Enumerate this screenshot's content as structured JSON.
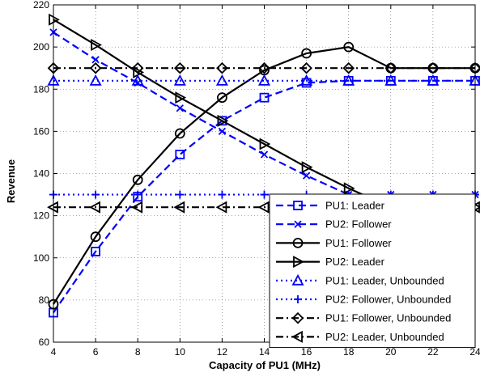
{
  "chart_data": {
    "type": "line",
    "title": "",
    "xlabel": "Capacity of PU1 (MHz)",
    "ylabel": "Revenue",
    "xlim": [
      4,
      24
    ],
    "ylim": [
      60,
      220
    ],
    "x_ticks": [
      4,
      6,
      8,
      10,
      12,
      14,
      16,
      18,
      20,
      22,
      24
    ],
    "y_ticks": [
      60,
      80,
      100,
      120,
      140,
      160,
      180,
      200,
      220
    ],
    "grid": true,
    "legend_position": "bottom-right",
    "x": [
      4,
      6,
      8,
      10,
      12,
      14,
      16,
      18,
      20,
      22,
      24
    ],
    "series": [
      {
        "name": "PU1: Leader",
        "color": "#0000ff",
        "line": "dashed",
        "marker": "square",
        "values": [
          74,
          103,
          129,
          149,
          165,
          176,
          183,
          184,
          184,
          184,
          184
        ]
      },
      {
        "name": "PU2: Follower",
        "color": "#0000ff",
        "line": "dashed",
        "marker": "x",
        "values": [
          207,
          194,
          183,
          171,
          160,
          149,
          139,
          130,
          130,
          130,
          130
        ]
      },
      {
        "name": "PU1: Follower",
        "color": "#000000",
        "line": "solid",
        "marker": "circle",
        "values": [
          78,
          110,
          137,
          159,
          176,
          189,
          197,
          200,
          190,
          190,
          190
        ]
      },
      {
        "name": "PU2: Leader",
        "color": "#000000",
        "line": "solid",
        "marker": "triangle-right",
        "values": [
          213,
          201,
          188,
          176,
          165,
          154,
          143,
          133,
          124,
          124,
          124
        ]
      },
      {
        "name": "PU1: Leader, Unbounded",
        "color": "#0000ff",
        "line": "dotted",
        "marker": "triangle-up",
        "values": [
          184,
          184,
          184,
          184,
          184,
          184,
          184,
          184,
          184,
          184,
          184
        ]
      },
      {
        "name": "PU2: Follower, Unbounded",
        "color": "#0000ff",
        "line": "dotted",
        "marker": "plus",
        "values": [
          130,
          130,
          130,
          130,
          130,
          130,
          130,
          130,
          130,
          130,
          130
        ]
      },
      {
        "name": "PU1: Follower, Unbounded",
        "color": "#000000",
        "line": "dashdot",
        "marker": "diamond",
        "values": [
          190,
          190,
          190,
          190,
          190,
          190,
          190,
          190,
          190,
          190,
          190
        ]
      },
      {
        "name": "PU2: Leader, Unbounded",
        "color": "#000000",
        "line": "dashdot",
        "marker": "triangle-left",
        "values": [
          124,
          124,
          124,
          124,
          124,
          124,
          124,
          124,
          124,
          124,
          124
        ]
      }
    ]
  }
}
